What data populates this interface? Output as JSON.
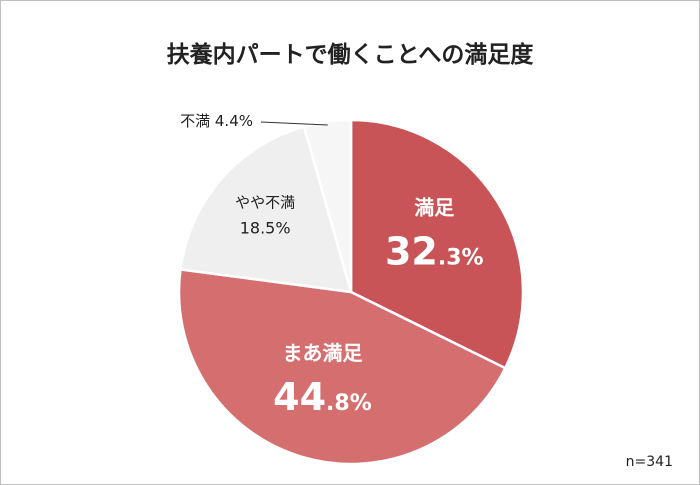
{
  "title": "扶養内パートで働くことへの満足度",
  "sample_note": "n=341",
  "chart_data": {
    "type": "pie",
    "title": "扶養内パートで働くことへの満足度",
    "start": "12 o'clock",
    "direction": "clockwise",
    "slices": [
      {
        "label": "満足",
        "value": 32.3,
        "int": "32",
        "dec": ".3%",
        "color": "#c85457",
        "label_style": "inside-large"
      },
      {
        "label": "まあ満足",
        "value": 44.8,
        "int": "44",
        "dec": ".8%",
        "color": "#d56f6f",
        "label_style": "inside-large"
      },
      {
        "label": "やや不満",
        "value": 18.5,
        "text": "18.5%",
        "color": "#efefef",
        "label_style": "inside-small"
      },
      {
        "label": "不満",
        "value": 4.4,
        "text": "不満 4.4%",
        "color": "#f6f6f6",
        "label_style": "outside-leader"
      }
    ],
    "annotation": "n=341"
  }
}
